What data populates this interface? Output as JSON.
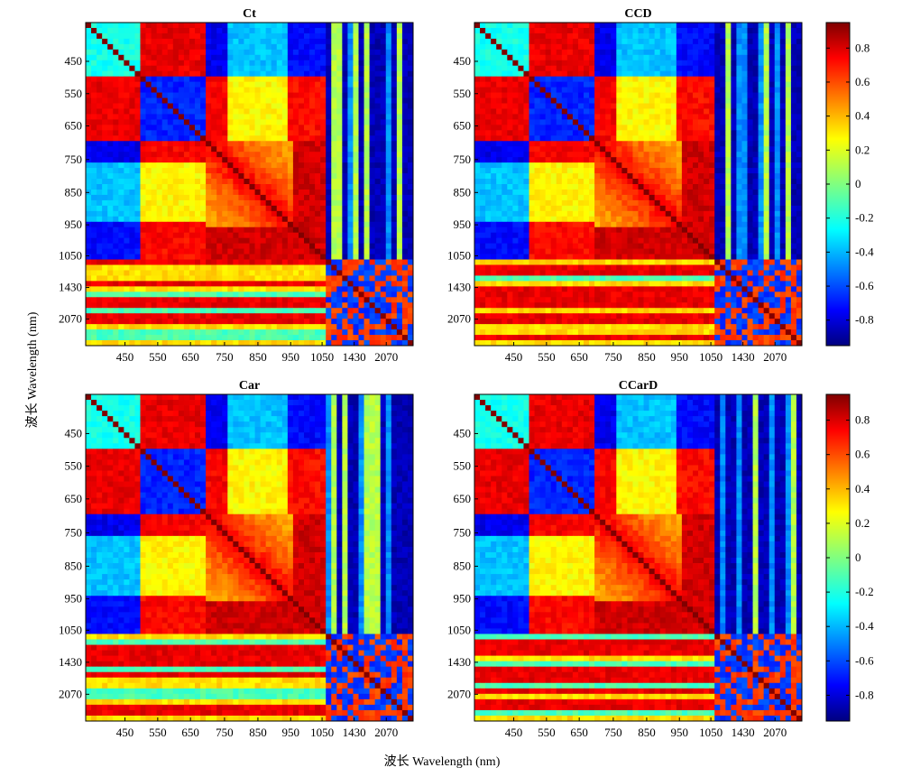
{
  "chart_data": {
    "type": "heatmap",
    "xlabel": "波长 Wavelength (nm)",
    "ylabel": "波长 Wavelength (nm)",
    "tick_labels": [
      "450",
      "550",
      "650",
      "750",
      "850",
      "950",
      "1050",
      "1430",
      "2070"
    ],
    "colorbar": {
      "min": -0.95,
      "max": 0.95,
      "ticks": [
        0.8,
        0.6,
        0.4,
        0.2,
        0,
        -0.2,
        -0.4,
        -0.6,
        -0.8
      ],
      "colormap": "jet"
    },
    "panels": [
      {
        "title": "Ct",
        "variant": 0
      },
      {
        "title": "CCD",
        "variant": 1
      },
      {
        "title": "Car",
        "variant": 2
      },
      {
        "title": "CCarD",
        "variant": 3
      }
    ]
  }
}
